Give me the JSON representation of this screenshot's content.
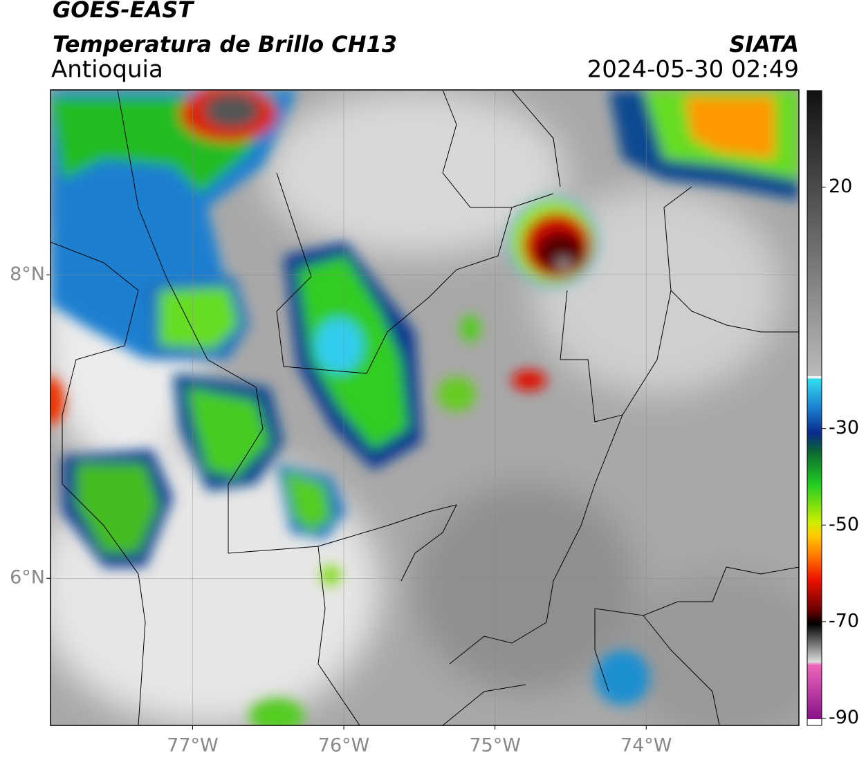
{
  "header": {
    "title": "GOES-EAST",
    "subtitle": "Temperatura de Brillo CH13",
    "region": "Antioquia",
    "source": "SIATA",
    "datetime": "2024-05-30 02:49"
  },
  "map": {
    "xlim": [
      -77.94,
      -72.99
    ],
    "ylim": [
      5.03,
      9.22
    ],
    "xticks": [
      {
        "value": -77,
        "label": "77°W"
      },
      {
        "value": -76,
        "label": "76°W"
      },
      {
        "value": -75,
        "label": "75°W"
      },
      {
        "value": -74,
        "label": "74°W"
      }
    ],
    "yticks": [
      {
        "value": 8,
        "label": "8°N"
      },
      {
        "value": 6,
        "label": "6°N"
      }
    ],
    "grid": true
  },
  "colorbar": {
    "clim": [
      -91.5,
      40
    ],
    "ticks": [
      20,
      -30,
      -50,
      -70,
      -90
    ]
  }
}
